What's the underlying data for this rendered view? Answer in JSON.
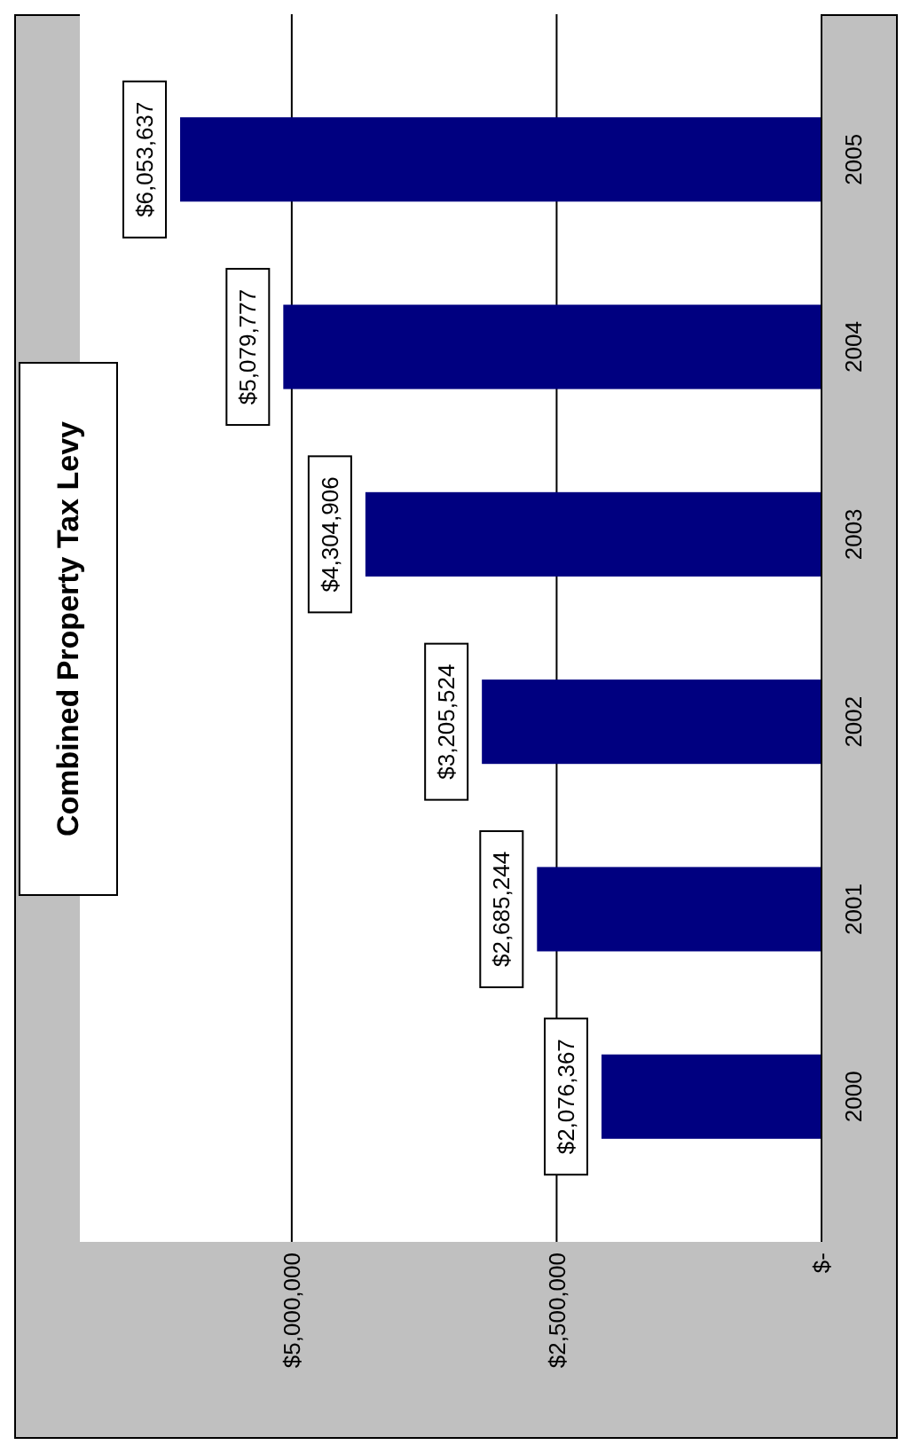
{
  "chart_data": {
    "type": "bar",
    "orientation": "horizontal",
    "title": "Combined Property Tax Levy",
    "categories": [
      "2005",
      "2004",
      "2003",
      "2002",
      "2001",
      "2000"
    ],
    "values": [
      6053637,
      5079777,
      4304906,
      3205524,
      2685244,
      2076367
    ],
    "value_labels": [
      "$6,053,637",
      "$5,079,777",
      "$4,304,906",
      "$3,205,524",
      "$2,685,244",
      "$2,076,367"
    ],
    "color": "#000080",
    "grid": "x",
    "xlim": [
      7000000,
      0
    ],
    "xticks": [
      {
        "value": 0,
        "label": "$-"
      },
      {
        "value": 2500000,
        "label": "$2,500,000"
      },
      {
        "value": 5000000,
        "label": "$5,000,000"
      }
    ]
  }
}
